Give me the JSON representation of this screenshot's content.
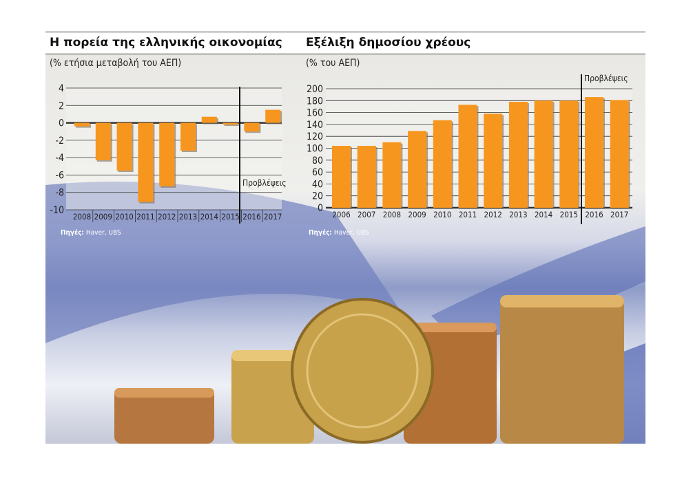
{
  "chart_data": [
    {
      "type": "bar",
      "title": "Η πορεία της ελληνικής οικονομίας",
      "subtitle": "(% ετήσια μεταβολή του ΑΕΠ)",
      "categories": [
        "2008",
        "2009",
        "2010",
        "2011",
        "2012",
        "2013",
        "2014",
        "2015",
        "2016",
        "2017"
      ],
      "values": [
        -0.4,
        -4.3,
        -5.5,
        -9.1,
        -7.3,
        -3.2,
        0.7,
        -0.2,
        -1.0,
        1.5
      ],
      "ylim": [
        -10,
        4
      ],
      "yticks": [
        "4",
        "2",
        "0",
        "-2",
        "-4",
        "-6",
        "-8",
        "-10"
      ],
      "forecast_label": "Προβλέψεις",
      "forecast_from": "2016",
      "grid": true,
      "source_label": "Πηγές:",
      "source": "Haver, UBS"
    },
    {
      "type": "bar",
      "title": "Εξέλιξη δημοσίου χρέους",
      "subtitle": "(% του ΑΕΠ)",
      "categories": [
        "2006",
        "2007",
        "2008",
        "2009",
        "2010",
        "2011",
        "2012",
        "2013",
        "2014",
        "2015",
        "2016",
        "2017"
      ],
      "values": [
        104,
        104,
        110,
        129,
        147,
        173,
        158,
        178,
        180,
        180,
        186,
        181
      ],
      "ylim": [
        0,
        200
      ],
      "yticks": [
        "200",
        "180",
        "160",
        "140",
        "120",
        "100",
        "80",
        "60",
        "40",
        "20",
        "0"
      ],
      "forecast_label": "Προβλέψεις",
      "forecast_from": "2016",
      "grid": true,
      "source_label": "Πηγές:",
      "source": "Haver, UBS"
    }
  ],
  "colors": {
    "bar": "#f7961e",
    "grid": "#333333",
    "text": "#222222"
  }
}
